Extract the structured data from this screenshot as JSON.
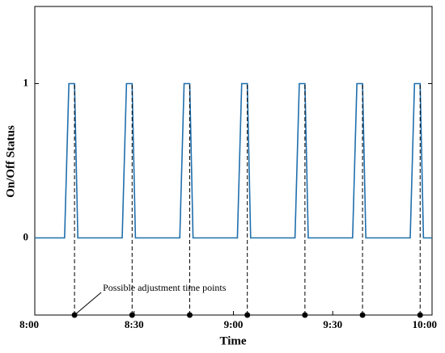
{
  "chart_data": {
    "type": "line",
    "xlabel": "Time",
    "ylabel": "On/Off Status",
    "annotation": "Possible adjustment time points",
    "xlim": [
      0,
      120
    ],
    "xticks": [
      {
        "value": 0,
        "label": "8:00"
      },
      {
        "value": 30,
        "label": "8:30"
      },
      {
        "value": 60,
        "label": "9:00"
      },
      {
        "value": 90,
        "label": "9:30"
      },
      {
        "value": 120,
        "label": "10:00"
      }
    ],
    "ylim": [
      -0.5,
      1.5
    ],
    "yticks": [
      0,
      1
    ],
    "series": [
      {
        "color": "#1f6fad",
        "x": [
          0,
          9,
          10.3,
          12,
          13,
          26.4,
          27.7,
          29.4,
          30.4,
          43.8,
          45.1,
          46.8,
          47.8,
          61.2,
          62.5,
          64.2,
          65.2,
          78.6,
          79.9,
          81.6,
          82.6,
          96,
          97.3,
          99,
          100,
          113.4,
          114.7,
          116.4,
          117.4,
          120
        ],
        "values": [
          0,
          0,
          1,
          1,
          0,
          0,
          1,
          1,
          0,
          0,
          1,
          1,
          0,
          0,
          1,
          1,
          0,
          0,
          1,
          1,
          0,
          0,
          1,
          1,
          0,
          0,
          1,
          1,
          0,
          0
        ]
      },
      {
        "color": "#000000",
        "x": [
          12,
          29.4,
          46.8,
          64.2,
          81.6,
          99,
          116.4
        ],
        "values": [
          -0.5,
          -0.5,
          -0.5,
          -0.5,
          -0.5,
          -0.5,
          -0.5
        ]
      }
    ]
  }
}
